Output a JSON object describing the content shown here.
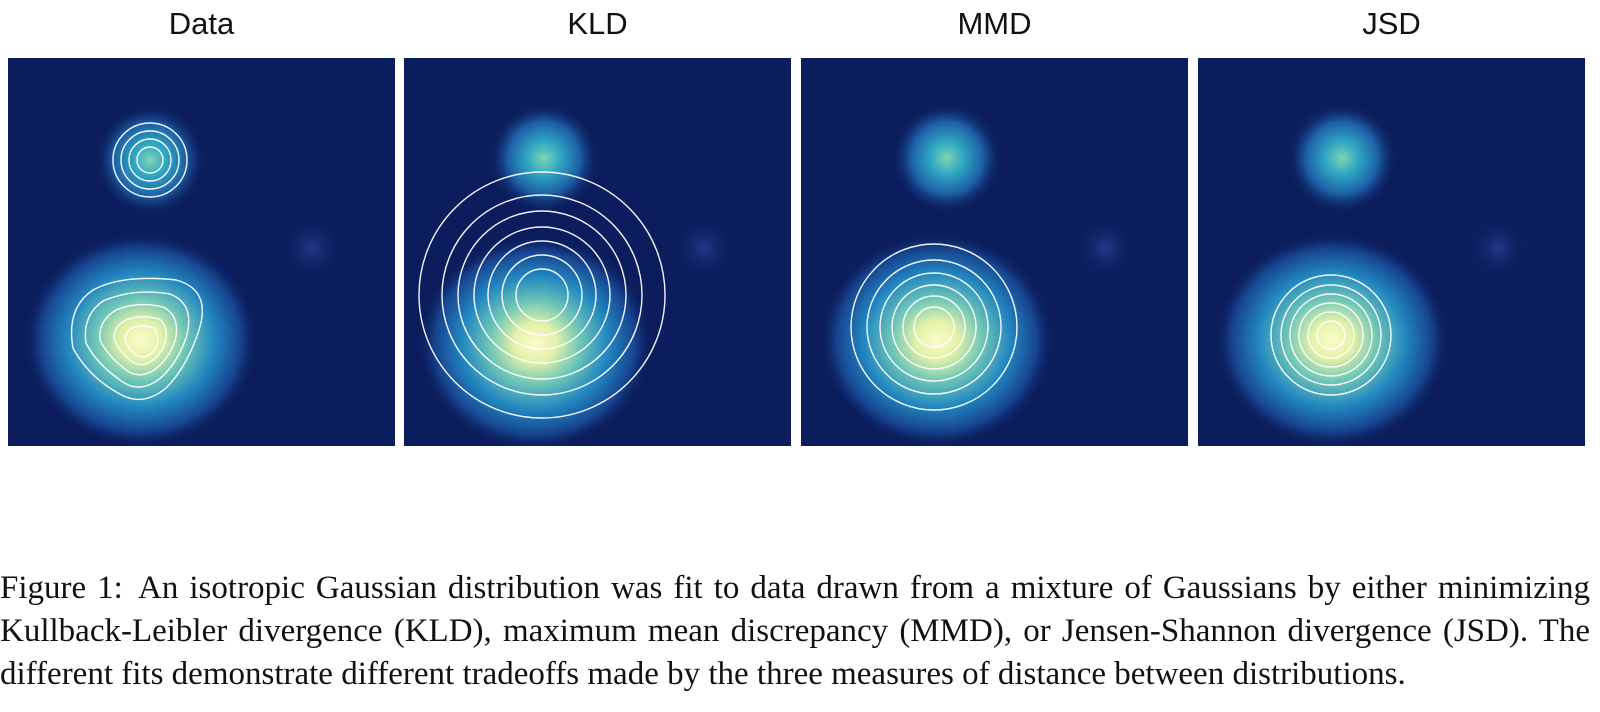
{
  "figure": {
    "panels": [
      {
        "id": "data",
        "title": "Data"
      },
      {
        "id": "kld",
        "title": "KLD"
      },
      {
        "id": "mmd",
        "title": "MMD"
      },
      {
        "id": "jsd",
        "title": "JSD"
      }
    ]
  },
  "caption": {
    "label": "Figure 1:",
    "text": "An isotropic Gaussian distribution was fit to data drawn from a mixture of Gaussians by either minimizing Kullback-Leibler divergence (KLD), maximum mean discrepancy (MMD), or Jensen-Shannon divergence (JSD). The different fits demonstrate different tradeoffs made by the three measures of distance between distributions."
  },
  "colors": {
    "background": "#0b1d5c",
    "contour": "#ffffff"
  }
}
